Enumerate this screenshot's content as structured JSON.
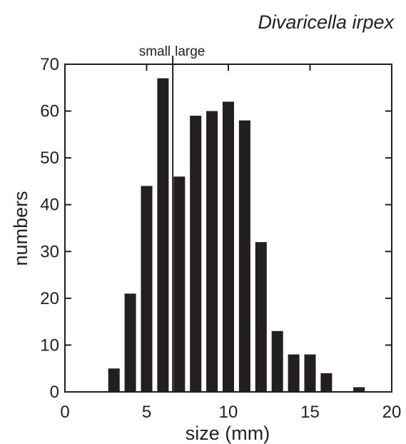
{
  "title": "Divaricella irpex",
  "chart_data": {
    "type": "bar",
    "title": "Divaricella irpex",
    "xlabel": "size (mm)",
    "ylabel": "numbers",
    "xlim": [
      0,
      20
    ],
    "ylim": [
      0,
      70
    ],
    "x_ticks": [
      0,
      5,
      10,
      15,
      20
    ],
    "y_ticks": [
      0,
      10,
      20,
      30,
      40,
      50,
      60,
      70
    ],
    "bar_width": 0.7,
    "bar_color": "#231f20",
    "grid": false,
    "x": [
      3,
      4,
      5,
      6,
      7,
      8,
      9,
      10,
      11,
      12,
      13,
      14,
      15,
      16,
      17,
      18
    ],
    "values": [
      5,
      21,
      44,
      67,
      46,
      59,
      60,
      62,
      58,
      32,
      13,
      8,
      8,
      4,
      0,
      1
    ],
    "divider": {
      "x": 6.6,
      "left_label": "small",
      "right_label": "large"
    }
  }
}
